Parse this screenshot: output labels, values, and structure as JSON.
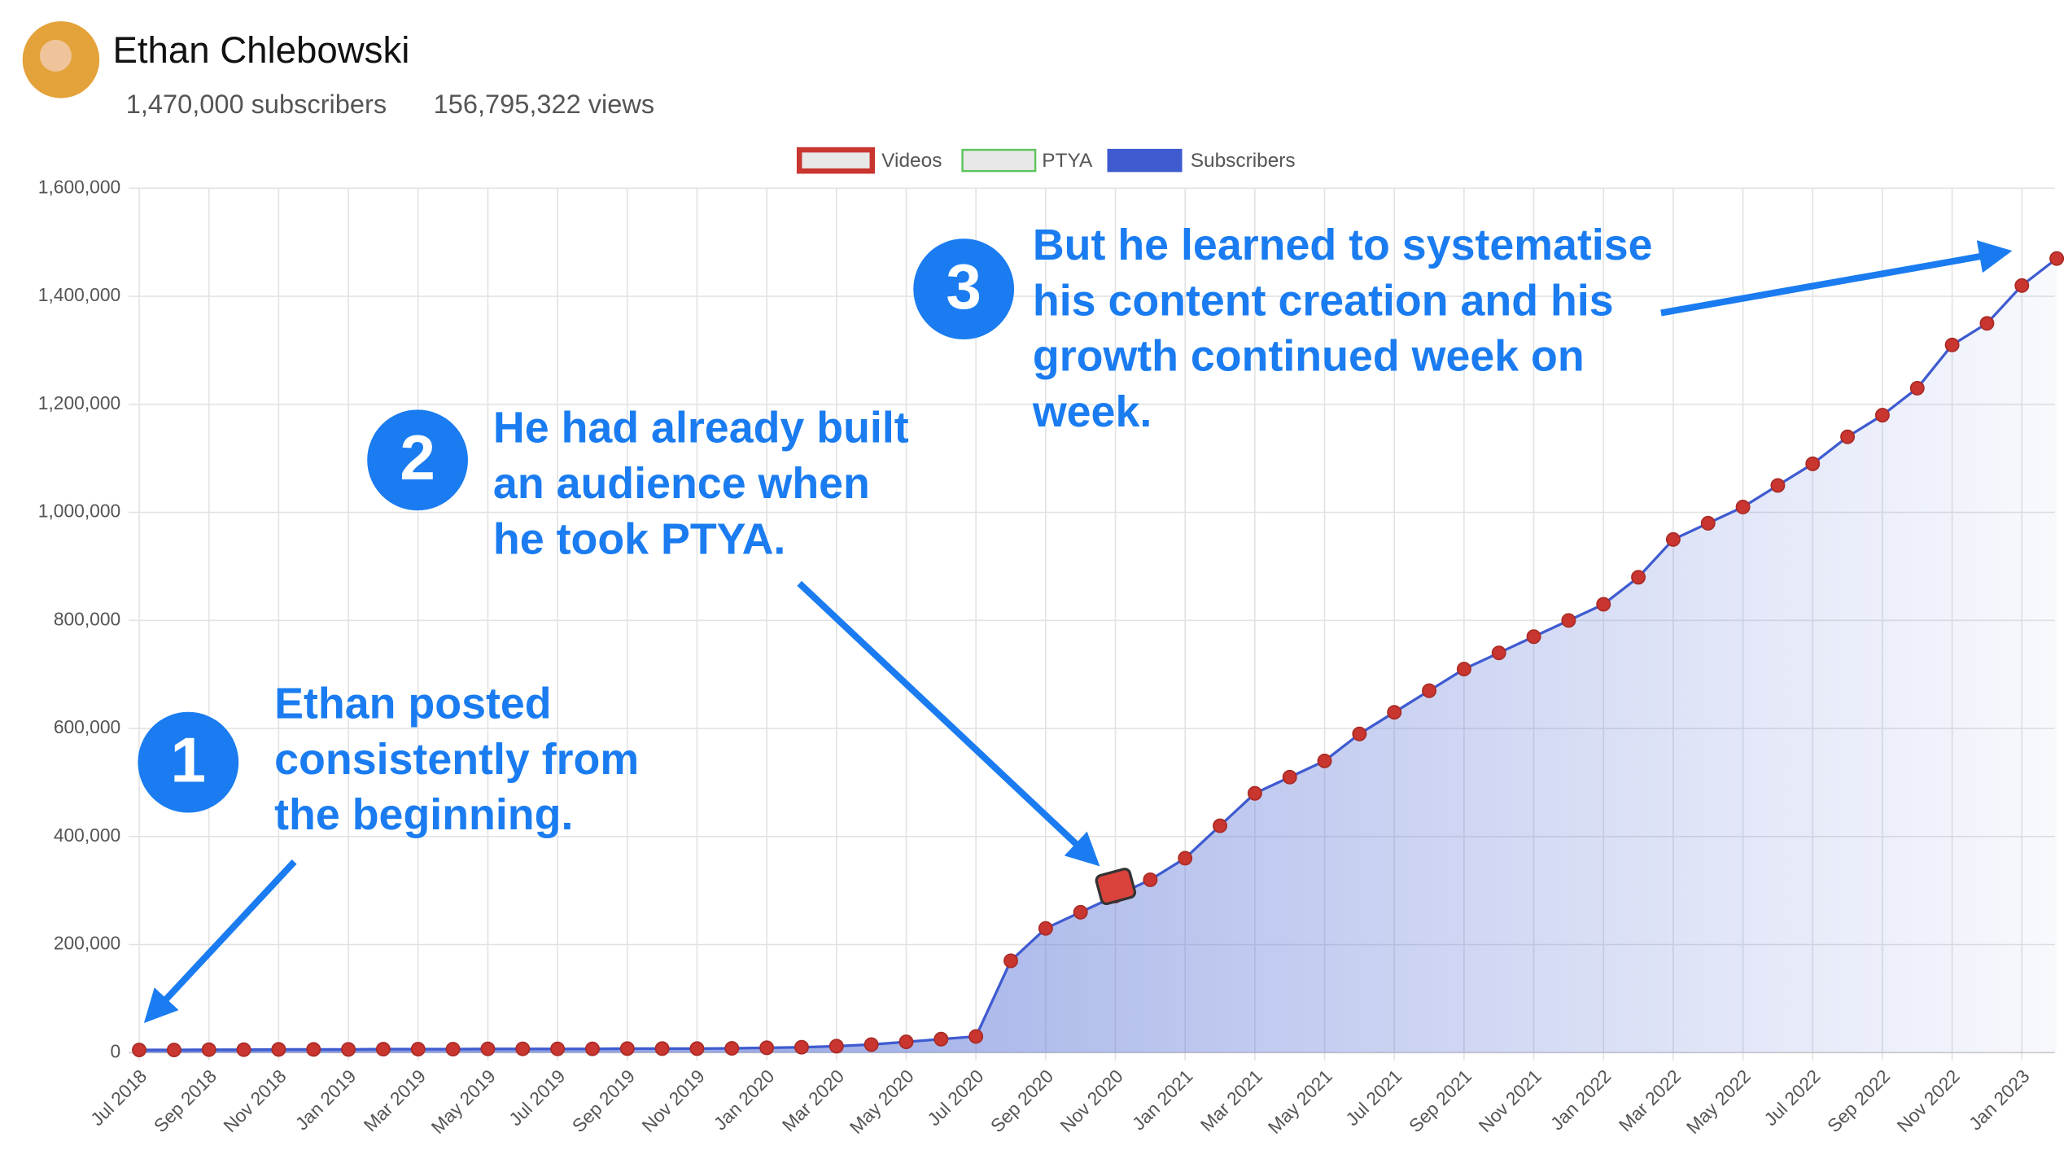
{
  "header": {
    "name": "Ethan Chlebowski",
    "subscribers": "1,470,000 subscribers",
    "views": "156,795,322 views"
  },
  "chart_data": {
    "type": "line",
    "x": [
      "2018-07",
      "2018-08",
      "2018-09",
      "2018-10",
      "2018-11",
      "2018-12",
      "2019-01",
      "2019-02",
      "2019-03",
      "2019-04",
      "2019-05",
      "2019-06",
      "2019-07",
      "2019-08",
      "2019-09",
      "2019-10",
      "2019-11",
      "2019-12",
      "2020-01",
      "2020-02",
      "2020-03",
      "2020-04",
      "2020-05",
      "2020-06",
      "2020-07",
      "2020-08",
      "2020-09",
      "2020-10",
      "2020-11",
      "2020-12",
      "2021-01",
      "2021-02",
      "2021-03",
      "2021-04",
      "2021-05",
      "2021-06",
      "2021-07",
      "2021-08",
      "2021-09",
      "2021-10",
      "2021-11",
      "2021-12",
      "2022-01",
      "2022-02",
      "2022-03",
      "2022-04",
      "2022-05",
      "2022-06",
      "2022-07",
      "2022-08",
      "2022-09",
      "2022-10",
      "2022-11",
      "2022-12",
      "2023-01",
      "2023-02"
    ],
    "series": [
      {
        "name": "Videos",
        "color": "#c9352f",
        "values": [
          5000,
          5000,
          5500,
          5500,
          6000,
          6000,
          6000,
          6500,
          6500,
          6500,
          7000,
          7000,
          7000,
          7000,
          7500,
          7500,
          7500,
          8000,
          9000,
          10000,
          12000,
          15000,
          20000,
          25000,
          30000,
          170000,
          230000,
          260000,
          290000,
          320000,
          360000,
          420000,
          480000,
          510000,
          540000,
          590000,
          630000,
          670000,
          710000,
          740000,
          770000,
          800000,
          830000,
          880000,
          950000,
          980000,
          1010000,
          1050000,
          1090000,
          1140000,
          1180000,
          1230000,
          1310000,
          1350000,
          1420000,
          1470000
        ]
      },
      {
        "name": "PTYA",
        "color": "#5ec45e",
        "values": [
          null,
          null,
          null,
          null,
          null,
          null,
          null,
          null,
          null,
          null,
          null,
          null,
          null,
          null,
          null,
          null,
          null,
          null,
          null,
          null,
          null,
          null,
          null,
          null,
          null,
          null,
          null,
          null,
          300000,
          null,
          null,
          null,
          null,
          null,
          null,
          null,
          null,
          null,
          null,
          null,
          null,
          null,
          null,
          null,
          null,
          null,
          null,
          null,
          null,
          null,
          null,
          null,
          null,
          null,
          null,
          null
        ]
      },
      {
        "name": "Subscribers",
        "color": "#3f5bd0",
        "values": [
          5000,
          5000,
          5500,
          5500,
          6000,
          6000,
          6000,
          6500,
          6500,
          6500,
          7000,
          7000,
          7000,
          7000,
          7500,
          7500,
          7500,
          8000,
          9000,
          10000,
          12000,
          15000,
          20000,
          25000,
          30000,
          170000,
          230000,
          260000,
          290000,
          320000,
          360000,
          420000,
          480000,
          510000,
          540000,
          590000,
          630000,
          670000,
          710000,
          740000,
          770000,
          800000,
          830000,
          880000,
          950000,
          980000,
          1010000,
          1050000,
          1090000,
          1140000,
          1180000,
          1230000,
          1310000,
          1350000,
          1420000,
          1470000
        ]
      }
    ],
    "ylim": [
      0,
      1600000
    ],
    "yticks": [
      0,
      {
        "value": 200000,
        "label": "200,000"
      },
      {
        "value": 400000,
        "label": "400,000"
      },
      {
        "value": 600000,
        "label": "600,000"
      },
      {
        "value": 800000,
        "label": "800,000"
      },
      {
        "value": 1000000,
        "label": "1,000,000"
      },
      {
        "value": 1200000,
        "label": "1,200,000"
      },
      {
        "value": 1400000,
        "label": "1,400,000"
      },
      {
        "value": 1600000,
        "label": "1,600,000"
      }
    ],
    "xticks": [
      {
        "value": "2018-07",
        "label": "Jul 2018"
      },
      {
        "value": "2018-09",
        "label": "Sep 2018"
      },
      {
        "value": "2018-11",
        "label": "Nov 2018"
      },
      {
        "value": "2019-01",
        "label": "Jan 2019"
      },
      {
        "value": "2019-03",
        "label": "Mar 2019"
      },
      {
        "value": "2019-05",
        "label": "May 2019"
      },
      {
        "value": "2019-07",
        "label": "Jul 2019"
      },
      {
        "value": "2019-09",
        "label": "Sep 2019"
      },
      {
        "value": "2019-11",
        "label": "Nov 2019"
      },
      {
        "value": "2020-01",
        "label": "Jan 2020"
      },
      {
        "value": "2020-03",
        "label": "Mar 2020"
      },
      {
        "value": "2020-05",
        "label": "May 2020"
      },
      {
        "value": "2020-07",
        "label": "Jul 2020"
      },
      {
        "value": "2020-09",
        "label": "Sep 2020"
      },
      {
        "value": "2020-11",
        "label": "Nov 2020"
      },
      {
        "value": "2021-01",
        "label": "Jan 2021"
      },
      {
        "value": "2021-03",
        "label": "Mar 2021"
      },
      {
        "value": "2021-05",
        "label": "May 2021"
      },
      {
        "value": "2021-07",
        "label": "Jul 2021"
      },
      {
        "value": "2021-09",
        "label": "Sep 2021"
      },
      {
        "value": "2021-11",
        "label": "Nov 2021"
      },
      {
        "value": "2022-01",
        "label": "Jan 2022"
      },
      {
        "value": "2022-03",
        "label": "Mar 2022"
      },
      {
        "value": "2022-05",
        "label": "May 2022"
      },
      {
        "value": "2022-07",
        "label": "Jul 2022"
      },
      {
        "value": "2022-09",
        "label": "Sep 2022"
      },
      {
        "value": "2022-11",
        "label": "Nov 2022"
      },
      {
        "value": "2023-01",
        "label": "Jan 2023"
      }
    ],
    "grid": true,
    "legend": "top",
    "annotations": [
      {
        "number": "1",
        "lines": [
          "Ethan posted",
          "consistently from",
          "the beginning."
        ]
      },
      {
        "number": "2",
        "lines": [
          "He had already built",
          "an audience when",
          "he took PTYA."
        ]
      },
      {
        "number": "3",
        "lines": [
          "But he learned to systematise",
          "his content creation and his",
          "growth continued week on",
          "week."
        ]
      }
    ]
  }
}
